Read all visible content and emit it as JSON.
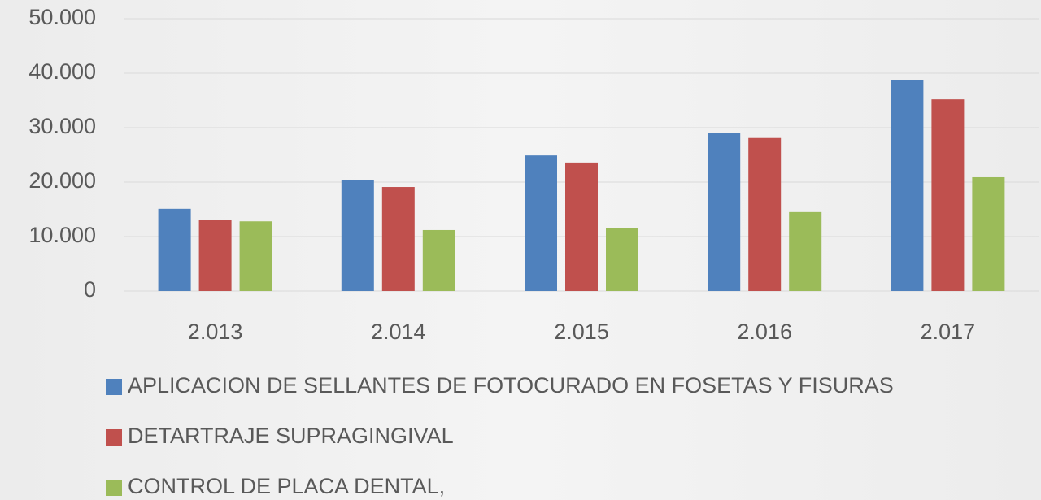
{
  "chart_data": {
    "type": "bar",
    "categories": [
      "2.013",
      "2.014",
      "2.015",
      "2.016",
      "2.017"
    ],
    "series": [
      {
        "name": "APLICACION DE SELLANTES DE FOTOCURADO EN FOSETAS Y FISURAS",
        "color": "#4f81bd",
        "values": [
          15100,
          20300,
          24900,
          29000,
          38800
        ]
      },
      {
        "name": "DETARTRAJE SUPRAGINGIVAL",
        "color": "#c0504d",
        "values": [
          13100,
          19100,
          23600,
          28100,
          35200
        ]
      },
      {
        "name": "CONTROL DE PLACA DENTAL,",
        "color": "#9bbb59",
        "values": [
          12800,
          11200,
          11500,
          14500,
          20900
        ]
      }
    ],
    "ylim": [
      0,
      50000
    ],
    "yticks": [
      0,
      {
        "value": 10000,
        "label": "10.000"
      },
      {
        "value": 20000,
        "label": "20.000"
      },
      {
        "value": 30000,
        "label": "30.000"
      },
      {
        "value": 40000,
        "label": "40.000"
      },
      {
        "value": 50000,
        "label": "50.000"
      }
    ],
    "grid": true,
    "legend": "bottom"
  }
}
